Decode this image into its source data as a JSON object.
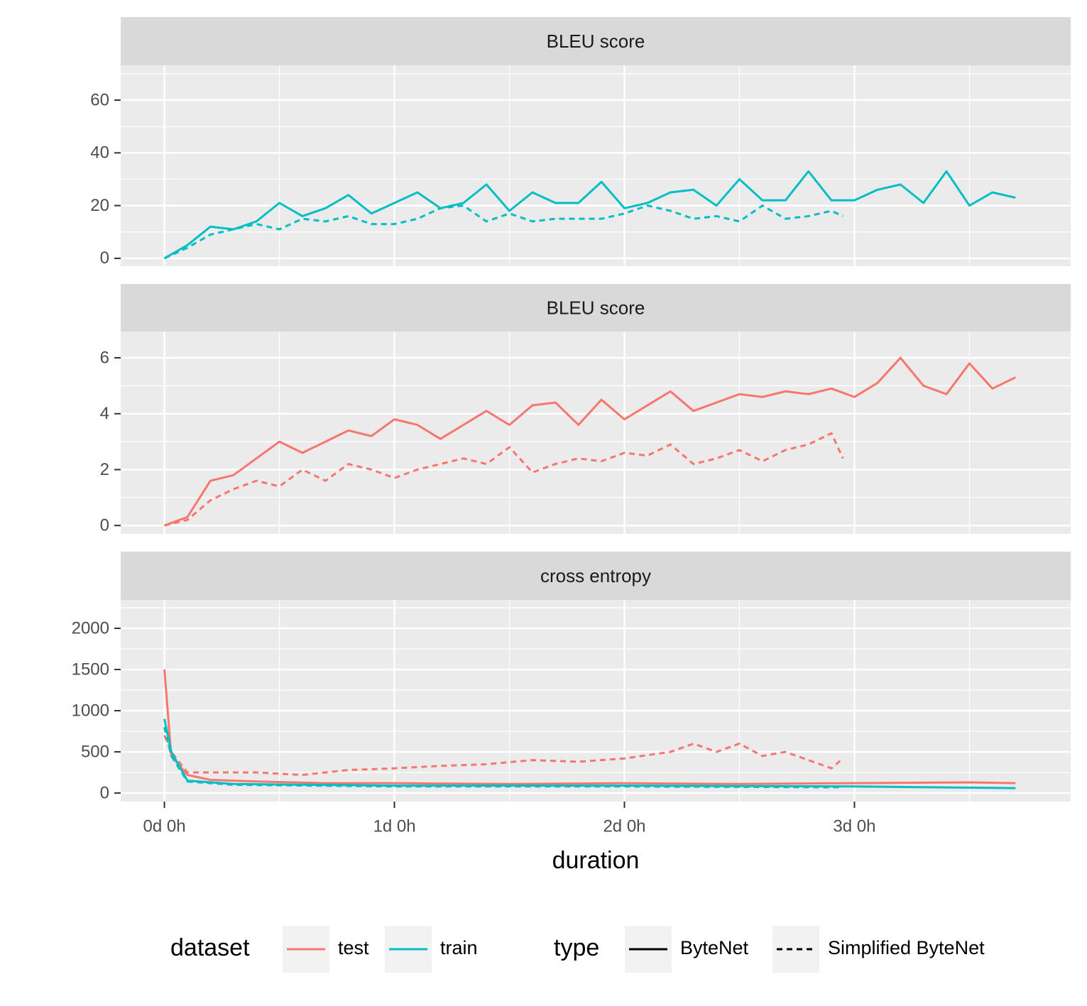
{
  "chart_data": [
    {
      "type": "line",
      "strip": "BLEU score",
      "xlim": [
        -0.19,
        3.94
      ],
      "xticks": [
        0,
        1,
        2,
        3
      ],
      "xminor": [
        0.5,
        1.5,
        2.5,
        3.5
      ],
      "ylim": [
        -3,
        73.2
      ],
      "yticks": [
        0,
        20,
        40,
        60
      ],
      "yminor": [
        10,
        30,
        50,
        70
      ],
      "series": [
        {
          "color": "#00BFC4",
          "dash": "solid",
          "x": [
            0,
            0.1,
            0.2,
            0.3,
            0.4,
            0.5,
            0.6,
            0.7,
            0.8,
            0.9,
            1.0,
            1.1,
            1.2,
            1.3,
            1.4,
            1.5,
            1.6,
            1.7,
            1.8,
            1.9,
            2.0,
            2.1,
            2.2,
            2.3,
            2.4,
            2.5,
            2.6,
            2.7,
            2.8,
            2.9,
            3.0,
            3.1,
            3.2,
            3.3,
            3.4,
            3.5,
            3.6,
            3.7
          ],
          "values": [
            0,
            5,
            12,
            11,
            14,
            21,
            16,
            19,
            24,
            17,
            21,
            25,
            19,
            21,
            28,
            18,
            25,
            21,
            21,
            29,
            19,
            21,
            25,
            26,
            20,
            30,
            22,
            22,
            33,
            22,
            22,
            26,
            28,
            21,
            33,
            20,
            25,
            23
          ]
        },
        {
          "color": "#00BFC4",
          "dash": "dashed",
          "x": [
            0,
            0.1,
            0.2,
            0.3,
            0.4,
            0.5,
            0.6,
            0.7,
            0.8,
            0.9,
            1.0,
            1.1,
            1.2,
            1.3,
            1.4,
            1.5,
            1.6,
            1.7,
            1.8,
            1.9,
            2.0,
            2.1,
            2.2,
            2.3,
            2.4,
            2.5,
            2.6,
            2.7,
            2.8,
            2.9,
            2.95
          ],
          "values": [
            0,
            4,
            9,
            11,
            13,
            11,
            15,
            14,
            16,
            13,
            13,
            15,
            19,
            20,
            14,
            17,
            14,
            15,
            15,
            15,
            17,
            20,
            18,
            15,
            16,
            14,
            20,
            15,
            16,
            18,
            16
          ]
        }
      ]
    },
    {
      "type": "line",
      "strip": "BLEU score",
      "xlim": [
        -0.19,
        3.94
      ],
      "xticks": [
        0,
        1,
        2,
        3
      ],
      "xminor": [
        0.5,
        1.5,
        2.5,
        3.5
      ],
      "ylim": [
        -0.3,
        6.94
      ],
      "yticks": [
        0,
        2,
        4,
        6
      ],
      "yminor": [
        1,
        3,
        5
      ],
      "series": [
        {
          "color": "#F8766D",
          "dash": "solid",
          "x": [
            0,
            0.1,
            0.2,
            0.3,
            0.4,
            0.5,
            0.6,
            0.7,
            0.8,
            0.9,
            1.0,
            1.1,
            1.2,
            1.3,
            1.4,
            1.5,
            1.6,
            1.7,
            1.8,
            1.9,
            2.0,
            2.1,
            2.2,
            2.3,
            2.4,
            2.5,
            2.6,
            2.7,
            2.8,
            2.9,
            3.0,
            3.1,
            3.2,
            3.3,
            3.4,
            3.5,
            3.6,
            3.7
          ],
          "values": [
            0,
            0.3,
            1.6,
            1.8,
            2.4,
            3.0,
            2.6,
            3.0,
            3.4,
            3.2,
            3.8,
            3.6,
            3.1,
            3.6,
            4.1,
            3.6,
            4.3,
            4.4,
            3.6,
            4.5,
            3.8,
            4.3,
            4.8,
            4.1,
            4.4,
            4.7,
            4.6,
            4.8,
            4.7,
            4.9,
            4.6,
            5.1,
            6.0,
            5.0,
            4.7,
            5.8,
            4.9,
            5.3
          ]
        },
        {
          "color": "#F8766D",
          "dash": "dashed",
          "x": [
            0,
            0.1,
            0.2,
            0.3,
            0.4,
            0.5,
            0.6,
            0.7,
            0.8,
            0.9,
            1.0,
            1.1,
            1.2,
            1.3,
            1.4,
            1.5,
            1.6,
            1.7,
            1.8,
            1.9,
            2.0,
            2.1,
            2.2,
            2.3,
            2.4,
            2.5,
            2.6,
            2.7,
            2.8,
            2.9,
            2.95
          ],
          "values": [
            0,
            0.2,
            0.9,
            1.3,
            1.6,
            1.4,
            2.0,
            1.6,
            2.2,
            2.0,
            1.7,
            2.0,
            2.2,
            2.4,
            2.2,
            2.8,
            1.9,
            2.2,
            2.4,
            2.3,
            2.6,
            2.5,
            2.9,
            2.2,
            2.4,
            2.7,
            2.3,
            2.7,
            2.9,
            3.3,
            2.4
          ]
        }
      ]
    },
    {
      "type": "line",
      "strip": "cross entropy",
      "xlim": [
        -0.19,
        3.94
      ],
      "xticks": [
        {
          "value": 0,
          "label": "0d 0h"
        },
        {
          "value": 1,
          "label": "1d 0h"
        },
        {
          "value": 2,
          "label": "2d 0h"
        },
        {
          "value": 3,
          "label": "3d 0h"
        }
      ],
      "xminor": [
        0.5,
        1.5,
        2.5,
        3.5
      ],
      "xlabel": "duration",
      "ylim": [
        -103,
        2345
      ],
      "yticks": [
        0,
        500,
        1000,
        1500,
        2000
      ],
      "yminor": [
        250,
        750,
        1250,
        1750,
        2250
      ],
      "series": [
        {
          "color": "#F8766D",
          "dash": "dashed",
          "x": [
            0,
            0.03,
            0.1,
            0.2,
            0.4,
            0.6,
            0.8,
            1.0,
            1.2,
            1.4,
            1.6,
            1.8,
            2.0,
            2.2,
            2.3,
            2.4,
            2.5,
            2.6,
            2.7,
            2.8,
            2.9,
            2.95
          ],
          "values": [
            700,
            500,
            250,
            250,
            250,
            220,
            280,
            300,
            330,
            350,
            400,
            380,
            420,
            500,
            600,
            500,
            600,
            450,
            500,
            400,
            300,
            420
          ]
        },
        {
          "color": "#F8766D",
          "dash": "solid",
          "x": [
            0,
            0.03,
            0.1,
            0.2,
            0.4,
            0.7,
            1.0,
            1.5,
            2.0,
            2.5,
            3.0,
            3.5,
            3.7
          ],
          "values": [
            1500,
            450,
            220,
            160,
            140,
            120,
            120,
            110,
            120,
            110,
            120,
            130,
            120
          ]
        },
        {
          "color": "#00BFC4",
          "dash": "dashed",
          "x": [
            0,
            0.03,
            0.1,
            0.3,
            1,
            2,
            2.95
          ],
          "values": [
            800,
            450,
            140,
            100,
            80,
            80,
            70
          ]
        },
        {
          "color": "#00BFC4",
          "dash": "solid",
          "x": [
            0,
            0.03,
            0.1,
            0.3,
            1,
            2,
            3,
            3.7
          ],
          "values": [
            900,
            500,
            150,
            110,
            90,
            90,
            80,
            60
          ]
        }
      ]
    }
  ],
  "legend": {
    "dataset": {
      "title": "dataset",
      "items": [
        {
          "label": "test",
          "color": "#F8766D"
        },
        {
          "label": "train",
          "color": "#00BFC4"
        }
      ]
    },
    "type": {
      "title": "type",
      "items": [
        {
          "label": "ByteNet",
          "dash": "solid"
        },
        {
          "label": "Simplified ByteNet",
          "dash": "dashed"
        }
      ]
    }
  }
}
